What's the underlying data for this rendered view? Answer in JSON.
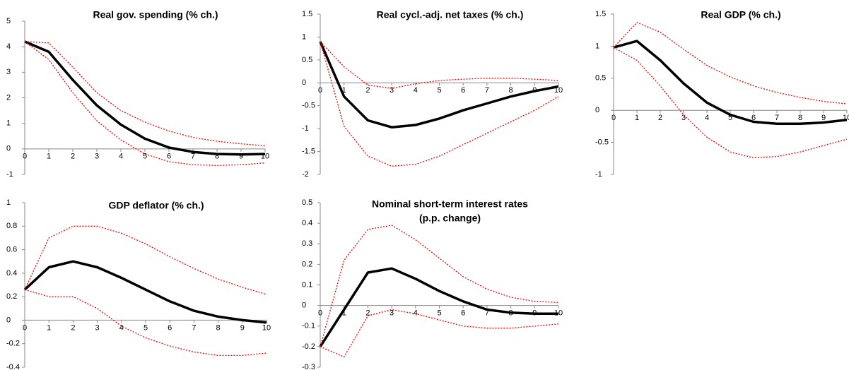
{
  "chart_data": [
    {
      "type": "line",
      "title": "Real gov. spending (% ch.)",
      "x": [
        0,
        1,
        2,
        3,
        4,
        5,
        6,
        7,
        8,
        9,
        10
      ],
      "xlim": [
        0,
        10
      ],
      "xticks": [
        0,
        1,
        2,
        3,
        4,
        5,
        6,
        7,
        8,
        9,
        10
      ],
      "ylim": [
        -1,
        5
      ],
      "yticks": [
        -1,
        0,
        1,
        2,
        3,
        4,
        5
      ],
      "series": [
        {
          "color": "#000000",
          "style": "solid",
          "values": [
            4.2,
            3.8,
            2.7,
            1.7,
            0.95,
            0.4,
            0.05,
            -0.12,
            -0.2,
            -0.22,
            -0.2
          ]
        },
        {
          "color": "#ff0000",
          "style": "dotted",
          "values": [
            4.2,
            4.15,
            3.2,
            2.2,
            1.5,
            1.05,
            0.7,
            0.45,
            0.3,
            0.2,
            0.12
          ]
        },
        {
          "color": "#ff0000",
          "style": "dotted",
          "values": [
            4.2,
            3.5,
            2.2,
            1.1,
            0.35,
            -0.2,
            -0.5,
            -0.62,
            -0.65,
            -0.62,
            -0.55
          ]
        }
      ]
    },
    {
      "type": "line",
      "title": "Real cycl.-adj. net taxes (% ch.)",
      "x": [
        0,
        1,
        2,
        3,
        4,
        5,
        6,
        7,
        8,
        9,
        10
      ],
      "xlim": [
        0,
        10
      ],
      "xticks": [
        0,
        1,
        2,
        3,
        4,
        5,
        6,
        7,
        8,
        9,
        10
      ],
      "ylim": [
        -2,
        1.5
      ],
      "yticks": [
        -2,
        -1.5,
        -1,
        -0.5,
        0,
        0.5,
        1,
        1.5
      ],
      "series": [
        {
          "color": "#000000",
          "style": "solid",
          "values": [
            0.9,
            -0.3,
            -0.82,
            -0.97,
            -0.92,
            -0.78,
            -0.6,
            -0.45,
            -0.3,
            -0.18,
            -0.08
          ]
        },
        {
          "color": "#ff0000",
          "style": "dotted",
          "values": [
            0.9,
            0.35,
            -0.05,
            -0.12,
            -0.02,
            0.05,
            0.08,
            0.1,
            0.1,
            0.08,
            0.05
          ]
        },
        {
          "color": "#ff0000",
          "style": "dotted",
          "values": [
            0.9,
            -0.95,
            -1.6,
            -1.82,
            -1.78,
            -1.6,
            -1.35,
            -1.1,
            -0.85,
            -0.6,
            -0.3
          ]
        }
      ]
    },
    {
      "type": "line",
      "title": "Real GDP (% ch.)",
      "x": [
        0,
        1,
        2,
        3,
        4,
        5,
        6,
        7,
        8,
        9,
        10
      ],
      "xlim": [
        0,
        10
      ],
      "xticks": [
        0,
        1,
        2,
        3,
        4,
        5,
        6,
        7,
        8,
        9,
        10
      ],
      "ylim": [
        -1,
        1.5
      ],
      "yticks": [
        -1,
        -0.5,
        0,
        0.5,
        1,
        1.5
      ],
      "series": [
        {
          "color": "#000000",
          "style": "solid",
          "values": [
            0.98,
            1.08,
            0.78,
            0.42,
            0.12,
            -0.07,
            -0.18,
            -0.21,
            -0.21,
            -0.19,
            -0.15
          ]
        },
        {
          "color": "#ff0000",
          "style": "dotted",
          "values": [
            0.98,
            1.37,
            1.22,
            0.95,
            0.7,
            0.52,
            0.38,
            0.28,
            0.2,
            0.14,
            0.1
          ]
        },
        {
          "color": "#ff0000",
          "style": "dotted",
          "values": [
            0.98,
            0.78,
            0.38,
            -0.07,
            -0.42,
            -0.65,
            -0.74,
            -0.72,
            -0.65,
            -0.55,
            -0.45
          ]
        }
      ]
    },
    {
      "type": "line",
      "title": "GDP deflator (% ch.)",
      "x": [
        0,
        1,
        2,
        3,
        4,
        5,
        6,
        7,
        8,
        9,
        10
      ],
      "xlim": [
        0,
        10
      ],
      "xticks": [
        0,
        1,
        2,
        3,
        4,
        5,
        6,
        7,
        8,
        9,
        10
      ],
      "ylim": [
        -0.4,
        1
      ],
      "yticks": [
        -0.4,
        -0.2,
        0,
        0.2,
        0.4,
        0.6,
        0.8,
        1
      ],
      "series": [
        {
          "color": "#000000",
          "style": "solid",
          "values": [
            0.26,
            0.45,
            0.5,
            0.45,
            0.36,
            0.26,
            0.16,
            0.08,
            0.03,
            0,
            -0.02
          ]
        },
        {
          "color": "#ff0000",
          "style": "dotted",
          "values": [
            0.26,
            0.7,
            0.8,
            0.8,
            0.74,
            0.65,
            0.54,
            0.44,
            0.35,
            0.28,
            0.22
          ]
        },
        {
          "color": "#ff0000",
          "style": "dotted",
          "values": [
            0.26,
            0.2,
            0.2,
            0.1,
            -0.05,
            -0.15,
            -0.22,
            -0.27,
            -0.3,
            -0.3,
            -0.28
          ]
        }
      ]
    },
    {
      "type": "line",
      "title": "Nominal short-term interest rates",
      "subtitle": "(p.p. change)",
      "x": [
        0,
        1,
        2,
        3,
        4,
        5,
        6,
        7,
        8,
        9,
        10
      ],
      "xlim": [
        0,
        10
      ],
      "xticks": [
        0,
        1,
        2,
        3,
        4,
        5,
        6,
        7,
        8,
        9,
        10
      ],
      "ylim": [
        -0.3,
        0.5
      ],
      "yticks": [
        -0.3,
        -0.2,
        -0.1,
        0,
        0.1,
        0.2,
        0.3,
        0.4,
        0.5
      ],
      "series": [
        {
          "color": "#000000",
          "style": "solid",
          "values": [
            -0.2,
            -0.02,
            0.16,
            0.18,
            0.13,
            0.07,
            0.02,
            -0.02,
            -0.035,
            -0.04,
            -0.04
          ]
        },
        {
          "color": "#ff0000",
          "style": "dotted",
          "values": [
            -0.2,
            0.22,
            0.37,
            0.39,
            0.32,
            0.23,
            0.14,
            0.08,
            0.04,
            0.02,
            0.015
          ]
        },
        {
          "color": "#ff0000",
          "style": "dotted",
          "values": [
            -0.2,
            -0.25,
            -0.05,
            -0.02,
            -0.04,
            -0.07,
            -0.1,
            -0.11,
            -0.11,
            -0.1,
            -0.09
          ]
        }
      ]
    }
  ]
}
